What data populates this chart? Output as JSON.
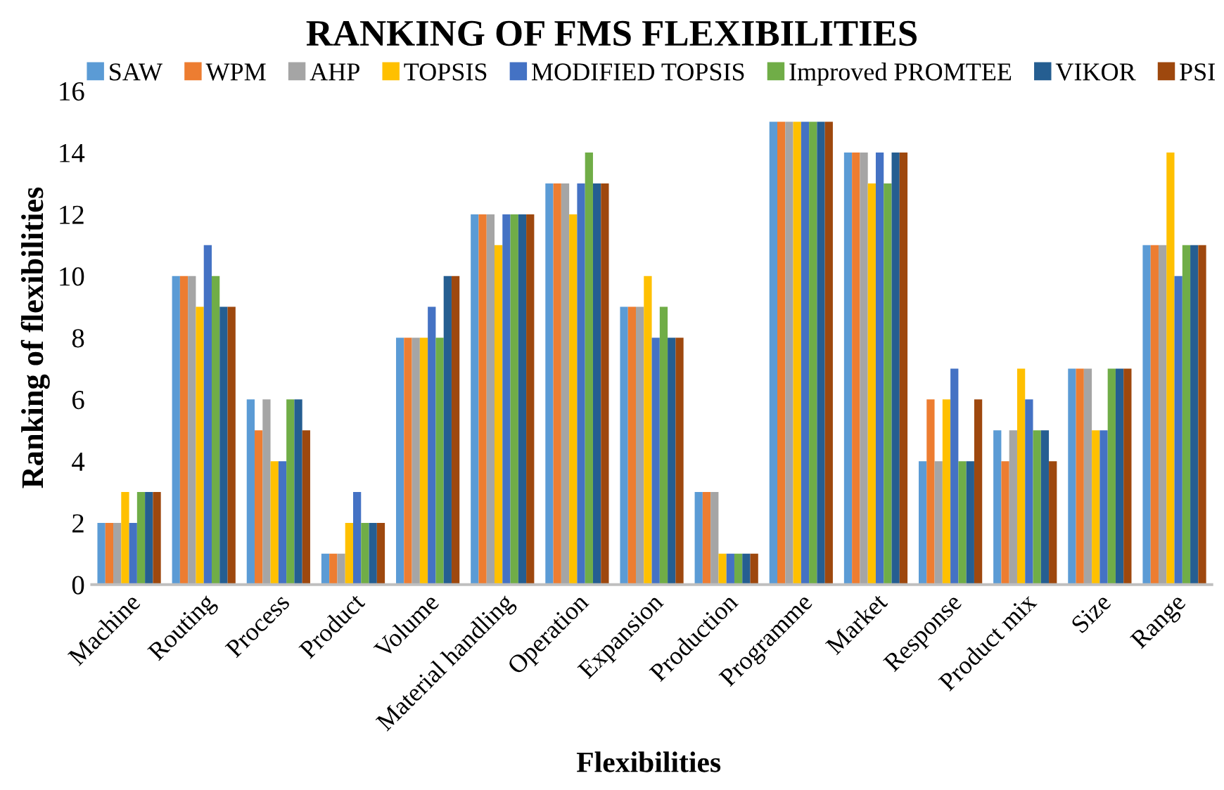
{
  "chart_data": {
    "type": "bar",
    "title": "RANKING OF FMS FLEXIBILITIES",
    "xlabel": "Flexibilities",
    "ylabel": "Ranking of flexibilities",
    "categories": [
      "Machine",
      "Routing",
      "Process",
      "Product",
      "Volume",
      "Material handling",
      "Operation",
      "Expansion",
      "Production",
      "Programme",
      "Market",
      "Response",
      "Product mix",
      "Size",
      "Range"
    ],
    "series": [
      {
        "name": "SAW",
        "color": "#5b9bd5",
        "values": [
          2,
          10,
          6,
          1,
          8,
          12,
          13,
          9,
          3,
          15,
          14,
          4,
          5,
          7,
          11
        ]
      },
      {
        "name": "WPM",
        "color": "#ed7d31",
        "values": [
          2,
          10,
          5,
          1,
          8,
          12,
          13,
          9,
          3,
          15,
          14,
          6,
          4,
          7,
          11
        ]
      },
      {
        "name": "AHP",
        "color": "#a5a5a5",
        "values": [
          2,
          10,
          6,
          1,
          8,
          12,
          13,
          9,
          3,
          15,
          14,
          4,
          5,
          7,
          11
        ]
      },
      {
        "name": "TOPSIS",
        "color": "#ffc000",
        "values": [
          3,
          9,
          4,
          2,
          8,
          11,
          12,
          10,
          1,
          15,
          13,
          6,
          7,
          5,
          14
        ]
      },
      {
        "name": "MODIFIED TOPSIS",
        "color": "#4472c4",
        "values": [
          2,
          11,
          4,
          3,
          9,
          12,
          13,
          8,
          1,
          15,
          14,
          7,
          6,
          5,
          10
        ]
      },
      {
        "name": "Improved PROMTEE",
        "color": "#70ad47",
        "values": [
          3,
          10,
          6,
          2,
          8,
          12,
          14,
          9,
          1,
          15,
          13,
          4,
          5,
          7,
          11
        ]
      },
      {
        "name": "VIKOR",
        "color": "#255e91",
        "values": [
          3,
          9,
          6,
          2,
          10,
          12,
          13,
          8,
          1,
          15,
          14,
          4,
          5,
          7,
          11
        ]
      },
      {
        "name": "PSI",
        "color": "#9e480e",
        "values": [
          3,
          9,
          5,
          2,
          10,
          12,
          13,
          8,
          1,
          15,
          14,
          6,
          4,
          7,
          11
        ]
      }
    ],
    "ylim": [
      0,
      16
    ],
    "yticks": [
      0,
      2,
      4,
      6,
      8,
      10,
      12,
      14,
      16
    ],
    "grid": false,
    "legend": "top"
  }
}
